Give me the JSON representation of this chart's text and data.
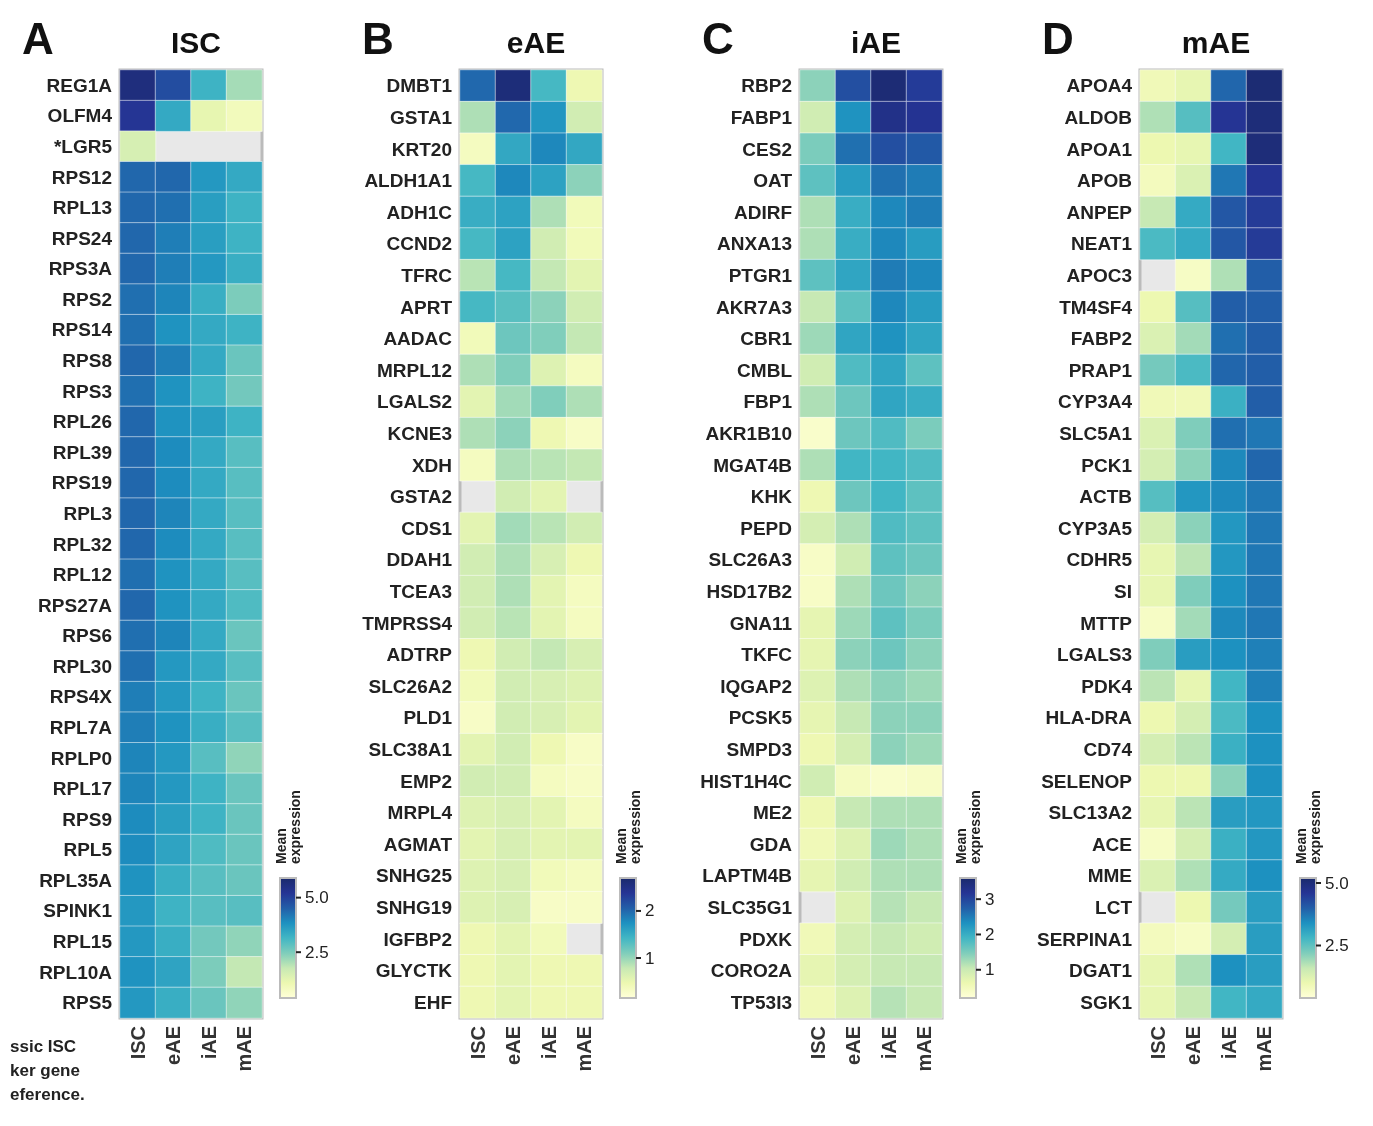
{
  "chart_data": [
    {
      "type": "heatmap",
      "title": "ISC",
      "annotations": [
        "A",
        "ssic ISC\nker gene\neference."
      ],
      "clabel": "Mean\nexpression",
      "clim": [
        0.4,
        5.9
      ],
      "cticks": [
        2.5,
        {
          "value": 5,
          "label": "5.0"
        }
      ],
      "categories": [
        "ISC",
        "eAE",
        "iAE",
        "mAE"
      ],
      "y_categories": [
        "REG1A",
        "OLFM4",
        "*LGR5",
        "RPS12",
        "RPL13",
        "RPS24",
        "RPS3A",
        "RPS2",
        "RPS14",
        "RPS8",
        "RPS3",
        "RPL26",
        "RPL39",
        "RPS19",
        "RPL3",
        "RPL32",
        "RPL12",
        "RPS27A",
        "RPS6",
        "RPL30",
        "RPS4X",
        "RPL7A",
        "RPLP0",
        "RPL17",
        "RPS9",
        "RPL5",
        "RPL35A",
        "SPINK1",
        "RPL15",
        "RPL10A",
        "RPS5"
      ],
      "cells": [
        [
          5.6,
          4.8,
          3.2,
          2.1
        ],
        [
          5.2,
          3.4,
          1.2,
          0.9
        ],
        [
          1.5,
          null,
          null,
          null
        ],
        [
          4.4,
          4.4,
          3.7,
          3.4
        ],
        [
          4.4,
          4.3,
          3.6,
          3.2
        ],
        [
          4.4,
          4.1,
          3.6,
          3.2
        ],
        [
          4.4,
          4.1,
          3.7,
          3.3
        ],
        [
          4.3,
          4.0,
          3.3,
          2.5
        ],
        [
          4.3,
          3.8,
          3.4,
          3.2
        ],
        [
          4.4,
          4.1,
          3.4,
          2.7
        ],
        [
          4.3,
          3.8,
          3.2,
          2.6
        ],
        [
          4.4,
          3.8,
          3.6,
          3.2
        ],
        [
          4.4,
          3.9,
          3.4,
          2.9
        ],
        [
          4.4,
          3.9,
          3.4,
          2.9
        ],
        [
          4.4,
          4.0,
          3.4,
          2.9
        ],
        [
          4.4,
          3.9,
          3.4,
          2.9
        ],
        [
          4.3,
          3.8,
          3.4,
          2.9
        ],
        [
          4.4,
          3.8,
          3.4,
          3.0
        ],
        [
          4.3,
          4.0,
          3.4,
          2.7
        ],
        [
          4.3,
          3.7,
          3.4,
          2.9
        ],
        [
          4.1,
          3.7,
          3.2,
          2.7
        ],
        [
          4.1,
          3.8,
          3.3,
          2.9
        ],
        [
          4.0,
          3.7,
          2.9,
          2.3
        ],
        [
          4.0,
          3.7,
          3.2,
          2.7
        ],
        [
          3.9,
          3.6,
          3.2,
          2.7
        ],
        [
          3.9,
          3.5,
          3.0,
          2.7
        ],
        [
          3.8,
          3.3,
          2.9,
          2.7
        ],
        [
          3.7,
          3.2,
          2.9,
          2.9
        ],
        [
          3.7,
          3.3,
          2.6,
          2.3
        ],
        [
          3.8,
          3.5,
          2.5,
          1.8
        ],
        [
          3.7,
          3.3,
          2.7,
          2.3
        ]
      ]
    },
    {
      "type": "heatmap",
      "title": "eAE",
      "annotations": [
        "B"
      ],
      "clabel": "Mean\nexpression",
      "clim": [
        0.15,
        2.7
      ],
      "cticks": [
        1,
        2
      ],
      "categories": [
        "ISC",
        "eAE",
        "iAE",
        "mAE"
      ],
      "y_categories": [
        "DMBT1",
        "GSTA1",
        "KRT20",
        "ALDH1A1",
        "ADH1C",
        "CCND2",
        "TFRC",
        "APRT",
        "AADAC",
        "MRPL12",
        "LGALS2",
        "KCNE3",
        "XDH",
        "GSTA2",
        "CDS1",
        "DDAH1",
        "TCEA3",
        "TMPRSS4",
        "ADTRP",
        "SLC26A2",
        "PLD1",
        "SLC38A1",
        "EMP2",
        "MRPL4",
        "AGMAT",
        "SNHG25",
        "SNHG19",
        "IGFBP2",
        "GLYCTK",
        "EHF"
      ],
      "cells": [
        [
          2.0,
          2.6,
          1.4,
          0.45
        ],
        [
          0.9,
          2.0,
          1.7,
          0.7
        ],
        [
          0.35,
          1.55,
          1.8,
          1.55
        ],
        [
          1.4,
          1.8,
          1.6,
          1.05
        ],
        [
          1.5,
          1.6,
          0.9,
          0.4
        ],
        [
          1.4,
          1.6,
          0.7,
          0.4
        ],
        [
          0.85,
          1.4,
          0.8,
          0.55
        ],
        [
          1.4,
          1.3,
          1.05,
          0.7
        ],
        [
          0.4,
          1.2,
          1.1,
          0.8
        ],
        [
          0.9,
          1.1,
          0.6,
          0.35
        ],
        [
          0.55,
          0.95,
          1.1,
          0.9
        ],
        [
          0.9,
          1.05,
          0.45,
          0.3
        ],
        [
          0.35,
          0.9,
          0.85,
          0.8
        ],
        [
          null,
          0.7,
          0.55,
          null
        ],
        [
          0.55,
          0.95,
          0.85,
          0.7
        ],
        [
          0.7,
          0.9,
          0.65,
          0.45
        ],
        [
          0.7,
          0.9,
          0.55,
          0.35
        ],
        [
          0.7,
          0.85,
          0.55,
          0.35
        ],
        [
          0.45,
          0.7,
          0.8,
          0.65
        ],
        [
          0.4,
          0.7,
          0.65,
          0.6
        ],
        [
          0.3,
          0.7,
          0.65,
          0.55
        ],
        [
          0.55,
          0.7,
          0.45,
          0.3
        ],
        [
          0.7,
          0.7,
          0.35,
          0.3
        ],
        [
          0.6,
          0.65,
          0.55,
          0.35
        ],
        [
          0.55,
          0.65,
          0.55,
          0.55
        ],
        [
          0.6,
          0.65,
          0.4,
          0.35
        ],
        [
          0.6,
          0.65,
          0.3,
          0.3
        ],
        [
          0.45,
          0.55,
          0.4,
          null
        ],
        [
          0.45,
          0.55,
          0.45,
          0.45
        ],
        [
          0.45,
          0.55,
          0.45,
          0.45
        ]
      ]
    },
    {
      "type": "heatmap",
      "title": "iAE",
      "annotations": [
        "C"
      ],
      "clabel": "Mean\nexpression",
      "clim": [
        0.2,
        3.6
      ],
      "cticks": [
        1,
        2,
        3
      ],
      "categories": [
        "ISC",
        "eAE",
        "iAE",
        "mAE"
      ],
      "y_categories": [
        "RBP2",
        "FABP1",
        "CES2",
        "OAT",
        "ADIRF",
        "ANXA13",
        "PTGR1",
        "AKR7A3",
        "CBR1",
        "CMBL",
        "FBP1",
        "AKR1B10",
        "MGAT4B",
        "KHK",
        "PEPD",
        "SLC26A3",
        "HSD17B2",
        "GNA11",
        "TKFC",
        "IQGAP2",
        "PCSK5",
        "SMPD3",
        "HIST1H4C",
        "ME2",
        "GDA",
        "LAPTM4B",
        "SLC35G1",
        "PDXK",
        "CORO2A",
        "TP53I3"
      ],
      "cells": [
        [
          1.4,
          2.9,
          3.5,
          3.1
        ],
        [
          0.95,
          2.3,
          3.3,
          3.2
        ],
        [
          1.5,
          2.6,
          2.9,
          2.8
        ],
        [
          1.7,
          2.2,
          2.6,
          2.5
        ],
        [
          1.2,
          2.0,
          2.4,
          2.5
        ],
        [
          1.2,
          2.0,
          2.4,
          2.2
        ],
        [
          1.7,
          2.1,
          2.5,
          2.4
        ],
        [
          1.05,
          1.7,
          2.4,
          2.2
        ],
        [
          1.3,
          2.1,
          2.3,
          2.1
        ],
        [
          0.95,
          1.8,
          2.1,
          1.7
        ],
        [
          1.2,
          1.6,
          2.1,
          2.0
        ],
        [
          0.35,
          1.6,
          1.8,
          1.5
        ],
        [
          1.2,
          1.9,
          1.9,
          1.8
        ],
        [
          0.6,
          1.6,
          1.9,
          1.7
        ],
        [
          0.9,
          1.2,
          1.8,
          1.7
        ],
        [
          0.4,
          0.95,
          1.7,
          1.6
        ],
        [
          0.4,
          1.2,
          1.6,
          1.4
        ],
        [
          0.7,
          1.3,
          1.7,
          1.5
        ],
        [
          0.7,
          1.4,
          1.6,
          1.4
        ],
        [
          0.8,
          1.2,
          1.4,
          1.3
        ],
        [
          0.7,
          1.05,
          1.4,
          1.4
        ],
        [
          0.6,
          0.9,
          1.4,
          1.3
        ],
        [
          0.95,
          0.45,
          0.35,
          0.4
        ],
        [
          0.6,
          1.05,
          1.2,
          1.2
        ],
        [
          0.55,
          0.8,
          1.3,
          1.2
        ],
        [
          0.7,
          0.95,
          1.2,
          1.2
        ],
        [
          null,
          0.8,
          1.15,
          1.05
        ],
        [
          0.55,
          0.9,
          1.05,
          0.95
        ],
        [
          0.7,
          0.9,
          1.05,
          1.05
        ],
        [
          0.55,
          0.8,
          1.15,
          1.05
        ]
      ]
    },
    {
      "type": "heatmap",
      "title": "mAE",
      "annotations": [
        "D"
      ],
      "clabel": "Mean\nexpression",
      "clim": [
        0.4,
        5.2
      ],
      "cticks": [
        2.5,
        {
          "value": 5,
          "label": "5.0"
        }
      ],
      "categories": [
        "ISC",
        "eAE",
        "iAE",
        "mAE"
      ],
      "y_categories": [
        "APOA4",
        "ALDOB",
        "APOA1",
        "APOB",
        "ANPEP",
        "NEAT1",
        "APOC3",
        "TM4SF4",
        "FABP2",
        "PRAP1",
        "CYP3A4",
        "SLC5A1",
        "PCK1",
        "ACTB",
        "CYP3A5",
        "CDHR5",
        "SI",
        "MTTP",
        "LGALS3",
        "PDK4",
        "HLA-DRA",
        "CD74",
        "SELENOP",
        "SLC13A2",
        "ACE",
        "MME",
        "LCT",
        "SERPINA1",
        "DGAT1",
        "SGK1"
      ],
      "cells": [
        [
          0.9,
          1.1,
          3.9,
          5.1
        ],
        [
          1.8,
          2.6,
          4.6,
          5.0
        ],
        [
          1.0,
          1.1,
          2.8,
          5.0
        ],
        [
          0.8,
          1.3,
          3.7,
          4.6
        ],
        [
          1.6,
          3.0,
          4.1,
          4.5
        ],
        [
          2.7,
          3.0,
          4.1,
          4.5
        ],
        [
          null,
          0.7,
          1.8,
          4.0
        ],
        [
          1.0,
          2.6,
          4.0,
          4.0
        ],
        [
          1.3,
          1.9,
          3.8,
          4.0
        ],
        [
          2.3,
          2.7,
          3.9,
          4.0
        ],
        [
          0.9,
          0.9,
          2.9,
          4.0
        ],
        [
          1.3,
          2.2,
          3.8,
          3.7
        ],
        [
          1.4,
          2.1,
          3.5,
          3.9
        ],
        [
          2.6,
          3.3,
          3.5,
          3.7
        ],
        [
          1.4,
          2.1,
          3.3,
          3.7
        ],
        [
          1.1,
          1.7,
          3.3,
          3.7
        ],
        [
          1.1,
          2.2,
          3.4,
          3.7
        ],
        [
          0.7,
          1.9,
          3.5,
          3.7
        ],
        [
          2.2,
          3.2,
          3.4,
          3.6
        ],
        [
          1.7,
          1.1,
          2.8,
          3.6
        ],
        [
          1.0,
          1.4,
          2.7,
          3.4
        ],
        [
          1.4,
          1.7,
          2.9,
          3.4
        ],
        [
          1.0,
          1.0,
          2.1,
          3.4
        ],
        [
          1.1,
          1.7,
          3.2,
          3.3
        ],
        [
          0.7,
          1.4,
          2.9,
          3.3
        ],
        [
          1.3,
          1.8,
          3.0,
          3.4
        ],
        [
          null,
          1.0,
          2.3,
          3.2
        ],
        [
          0.8,
          0.7,
          1.4,
          3.2
        ],
        [
          1.1,
          1.8,
          3.4,
          3.2
        ],
        [
          1.1,
          1.6,
          2.8,
          3.0
        ]
      ]
    }
  ]
}
